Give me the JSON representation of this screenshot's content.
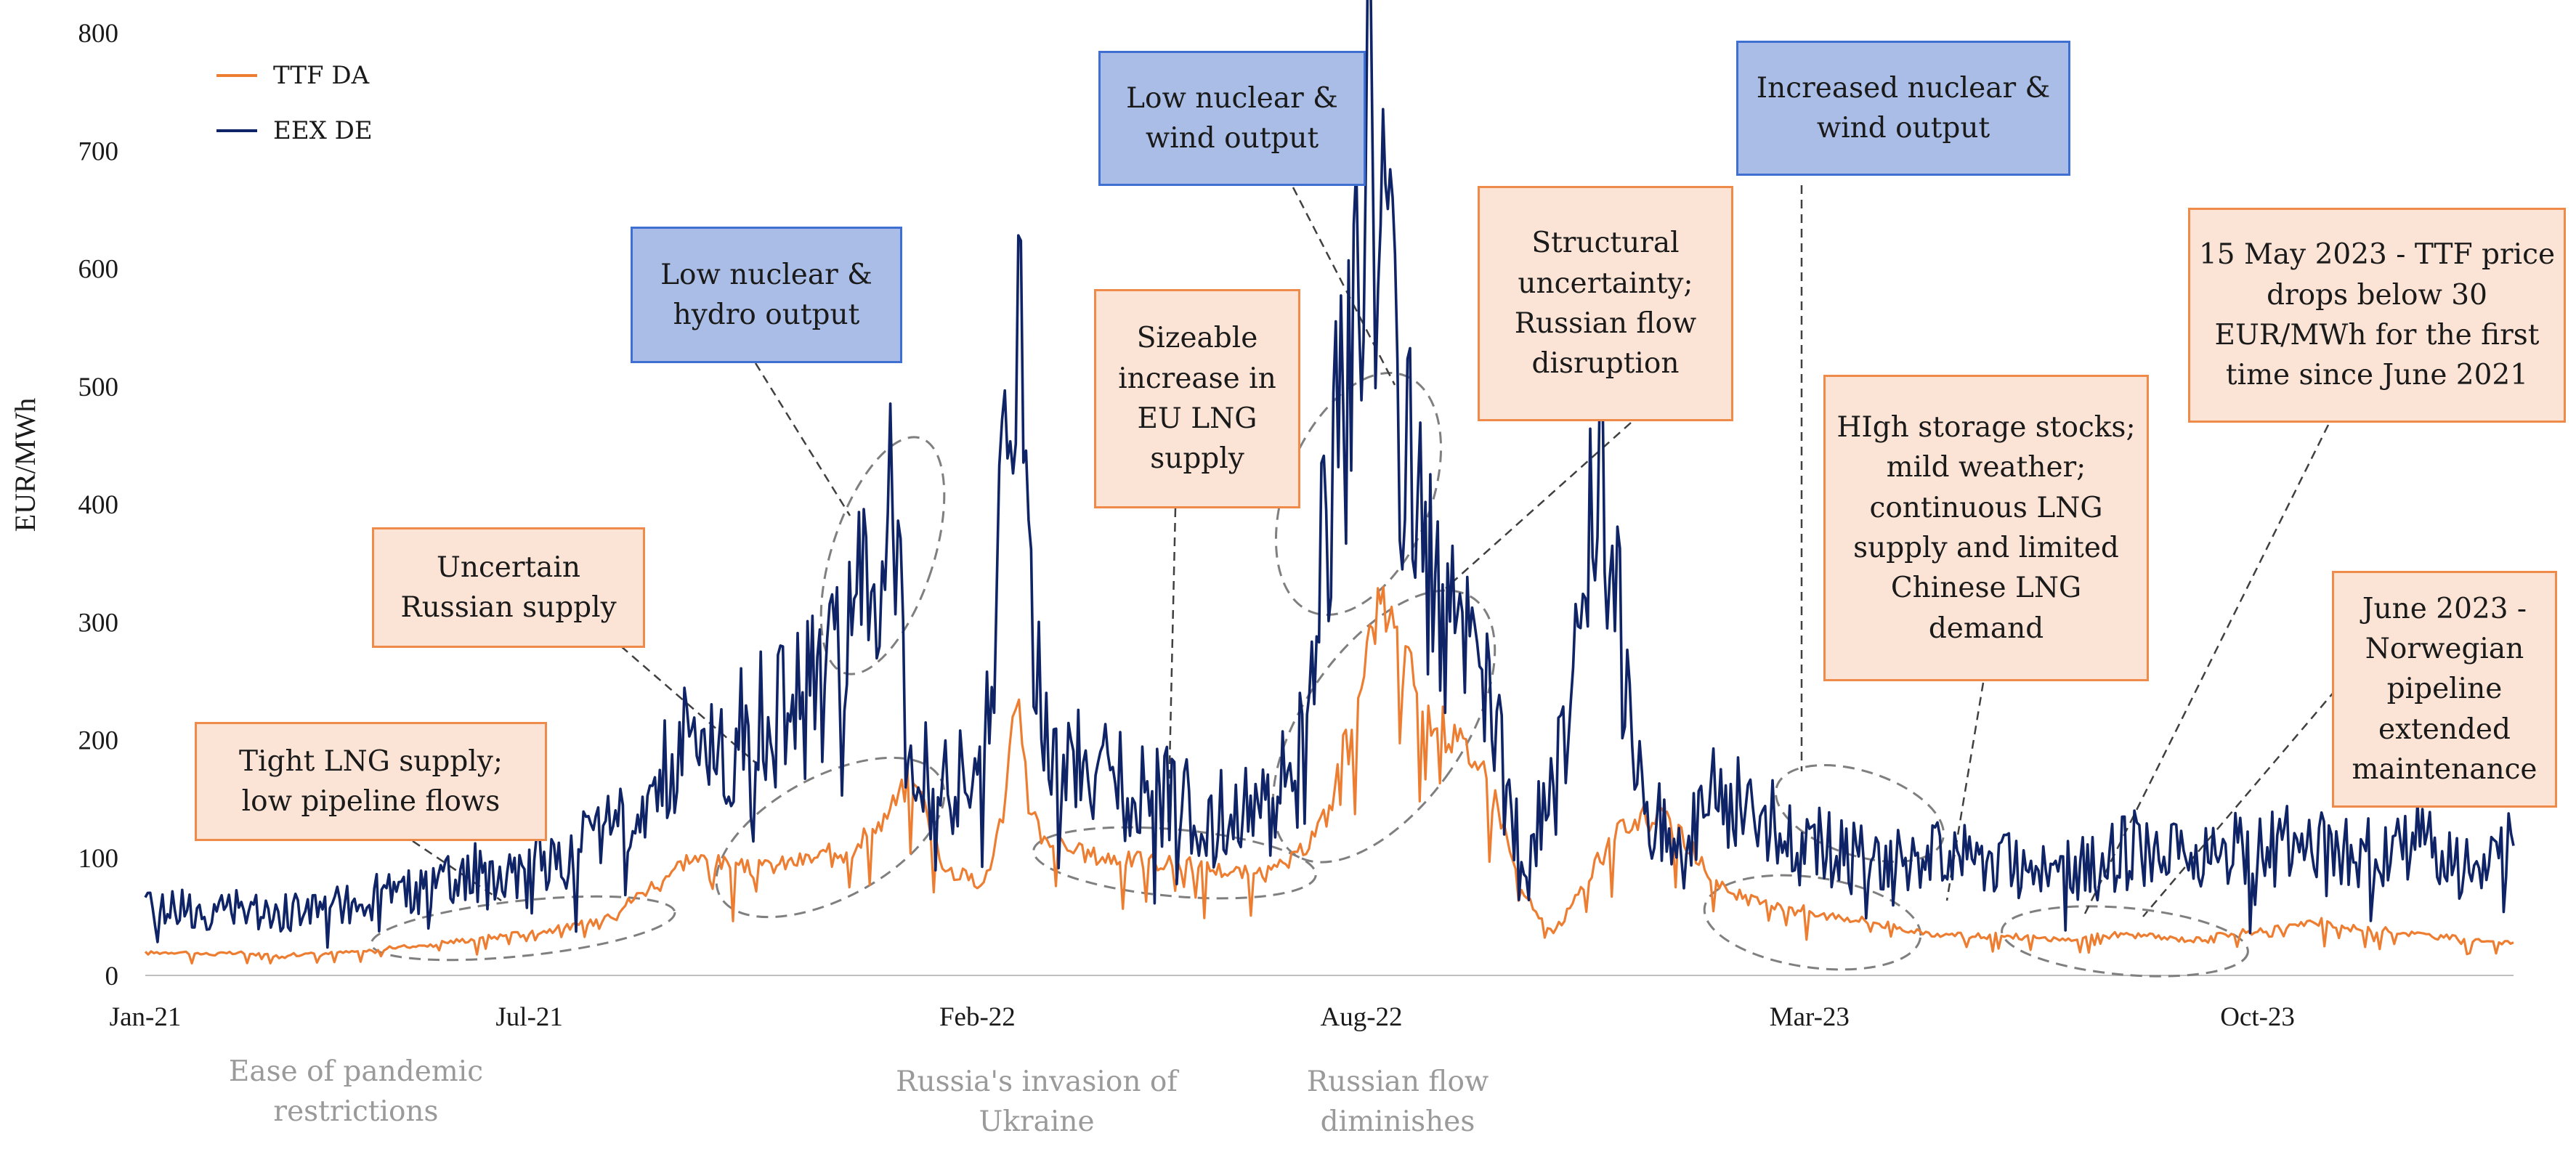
{
  "chart_data": {
    "type": "line",
    "title": "",
    "xlabel": "",
    "ylabel": "EUR/MWh",
    "ylim": [
      0,
      800
    ],
    "yticks": [
      0,
      100,
      200,
      300,
      400,
      500,
      600,
      700,
      800
    ],
    "xlim_months": [
      0,
      37
    ],
    "x_ticks": [
      {
        "m": 0,
        "label": "Jan-21"
      },
      {
        "m": 6,
        "label": "Jul-21"
      },
      {
        "m": 13,
        "label": "Feb-22"
      },
      {
        "m": 19,
        "label": "Aug-22"
      },
      {
        "m": 26,
        "label": "Mar-23"
      },
      {
        "m": 33,
        "label": "Oct-23"
      }
    ],
    "legend": "top-left",
    "series": [
      {
        "name": "TTF DA",
        "color": "#ed7d31",
        "x_months": [
          0,
          0.5,
          1,
          1.5,
          2,
          2.5,
          3,
          3.5,
          4,
          4.5,
          5,
          5.5,
          6,
          6.5,
          7,
          7.5,
          8,
          8.5,
          9,
          9.5,
          10,
          10.5,
          11,
          11.5,
          12,
          12.5,
          13,
          13.2,
          13.4,
          13.6,
          13.8,
          14,
          14.5,
          15,
          15.5,
          16,
          16.5,
          17,
          17.5,
          18,
          18.5,
          18.8,
          19,
          19.3,
          19.6,
          20,
          20.5,
          21,
          21.5,
          22,
          22.3,
          22.6,
          23,
          23.5,
          24,
          24.5,
          25,
          25.5,
          26,
          26.5,
          27,
          27.5,
          28,
          28.5,
          29,
          29.5,
          30,
          30.5,
          31,
          31.5,
          32,
          32.5,
          33,
          33.5,
          34,
          34.5,
          35,
          35.5,
          36,
          36.5,
          37
        ],
        "values": [
          19,
          20,
          18,
          19,
          17,
          18,
          19,
          21,
          24,
          27,
          30,
          33,
          36,
          40,
          45,
          60,
          80,
          100,
          95,
          90,
          95,
          100,
          110,
          130,
          170,
          90,
          80,
          90,
          140,
          240,
          150,
          120,
          105,
          100,
          98,
          95,
          92,
          88,
          85,
          100,
          140,
          210,
          260,
          320,
          280,
          230,
          200,
          170,
          70,
          35,
          60,
          90,
          120,
          140,
          120,
          80,
          65,
          58,
          55,
          50,
          45,
          40,
          35,
          33,
          34,
          32,
          30,
          33,
          35,
          32,
          30,
          35,
          38,
          42,
          45,
          40,
          38,
          35,
          32,
          30,
          28
        ]
      },
      {
        "name": "EEX DE",
        "color": "#0f2367",
        "x_months": [
          0,
          0.5,
          1,
          1.5,
          2,
          2.5,
          3,
          3.5,
          4,
          4.5,
          5,
          5.5,
          6,
          6.5,
          7,
          7.5,
          8,
          8.5,
          9,
          9.5,
          10,
          10.5,
          11,
          11.3,
          11.6,
          12,
          12.5,
          13,
          13.3,
          13.6,
          14,
          14.5,
          15,
          15.5,
          16,
          16.5,
          17,
          17.5,
          18,
          18.3,
          18.6,
          19,
          19.1,
          19.3,
          19.6,
          20,
          20.5,
          21,
          21.5,
          22,
          22.5,
          22.8,
          23,
          23.5,
          24,
          24.5,
          25,
          25.5,
          26,
          26.5,
          27,
          27.5,
          28,
          28.5,
          29,
          29.5,
          30,
          30.5,
          31,
          31.5,
          32,
          32.5,
          33,
          33.5,
          34,
          34.5,
          35,
          35.5,
          36,
          36.5,
          37
        ],
        "values": [
          55,
          60,
          50,
          58,
          52,
          55,
          60,
          65,
          70,
          75,
          85,
          90,
          95,
          100,
          120,
          150,
          170,
          200,
          190,
          210,
          230,
          250,
          280,
          350,
          430,
          180,
          160,
          170,
          300,
          550,
          200,
          180,
          170,
          160,
          150,
          140,
          135,
          140,
          180,
          300,
          450,
          600,
          760,
          650,
          500,
          350,
          280,
          220,
          100,
          150,
          350,
          450,
          300,
          140,
          100,
          150,
          140,
          130,
          120,
          110,
          100,
          95,
          100,
          105,
          100,
          95,
          90,
          95,
          110,
          105,
          100,
          110,
          105,
          115,
          110,
          105,
          100,
          120,
          95,
          85,
          110
        ]
      }
    ],
    "annotations": [
      {
        "id": "tight-lng",
        "style": "orange",
        "lines": [
          "Tight LNG supply;",
          "low pipeline flows"
        ]
      },
      {
        "id": "uncertain-russian",
        "style": "orange",
        "lines": [
          "Uncertain",
          "Russian supply"
        ]
      },
      {
        "id": "low-nuclear-hydro",
        "style": "blue",
        "lines": [
          "Low nuclear &",
          "hydro output"
        ]
      },
      {
        "id": "sizeable-increase",
        "style": "orange",
        "lines": [
          "Sizeable",
          "increase in",
          "EU LNG",
          "supply"
        ]
      },
      {
        "id": "low-nuclear-wind",
        "style": "blue",
        "lines": [
          "Low nuclear &",
          "wind output"
        ]
      },
      {
        "id": "structural",
        "style": "orange",
        "lines": [
          "Structural",
          "uncertainty;",
          "Russian flow",
          "disruption"
        ]
      },
      {
        "id": "increased-nuclear",
        "style": "blue",
        "lines": [
          "Increased nuclear &",
          "wind output"
        ]
      },
      {
        "id": "high-storage",
        "style": "orange",
        "lines": [
          "HIgh storage stocks;",
          "mild weather;",
          "continuous LNG",
          "supply and limited",
          "Chinese LNG",
          "demand"
        ]
      },
      {
        "id": "may-2023",
        "style": "orange",
        "lines": [
          "15 May 2023 - TTF price",
          "drops below 30",
          "EUR/MWh for the first",
          "time since June 2021"
        ]
      },
      {
        "id": "june-2023",
        "style": "orange",
        "lines": [
          "June 2023 -",
          "Norwegian",
          "pipeline",
          "extended",
          "maintenance"
        ]
      }
    ],
    "timeline_events": [
      {
        "id": "pandemic",
        "lines": [
          "Ease of pandemic",
          "restrictions"
        ]
      },
      {
        "id": "invasion",
        "lines": [
          "Russia's invasion of",
          "Ukraine"
        ]
      },
      {
        "id": "flow-diminishes",
        "lines": [
          "Russian flow",
          "diminishes"
        ]
      }
    ]
  }
}
